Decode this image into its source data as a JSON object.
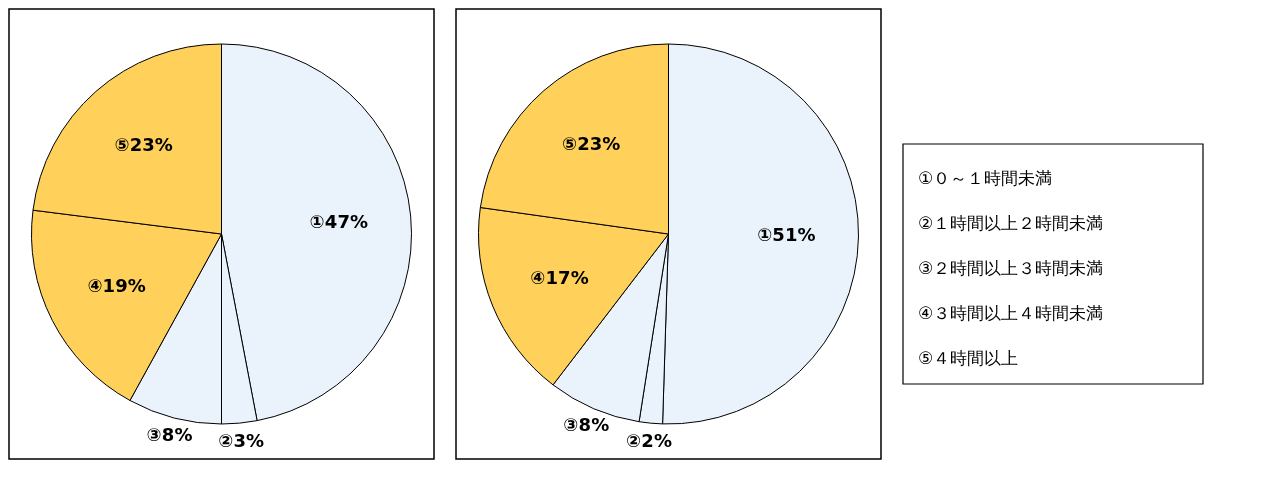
{
  "chart_data": [
    {
      "type": "pie",
      "categories": [
        null,
        null,
        null,
        null,
        null
      ],
      "values": [
        47,
        3,
        8,
        19,
        23
      ],
      "colors": [
        "#eaf3fb",
        "#eaf3fb",
        "#eaf3fb",
        "#ffd05a",
        "#ffd05a"
      ],
      "value_labels": [
        "①47%",
        "②3%",
        "③8%",
        "④19%",
        "⑤23%"
      ]
    },
    {
      "type": "pie",
      "categories": [
        null,
        null,
        null,
        null,
        null
      ],
      "values": [
        51,
        2,
        8,
        17,
        23
      ],
      "colors": [
        "#eaf3fb",
        "#eaf3fb",
        "#eaf3fb",
        "#ffd05a",
        "#ffd05a"
      ],
      "value_labels": [
        "①51%",
        "②2%",
        "③8%",
        "④17%",
        "⑤23%"
      ]
    },
    {
      "type": "other",
      "annotations": [
        "①０～１時間未満",
        "②１時間以上２時間未満",
        "③２時間以上３時間未満",
        "④３時間以上４時間未満",
        "⑤４時間以上"
      ]
    }
  ]
}
